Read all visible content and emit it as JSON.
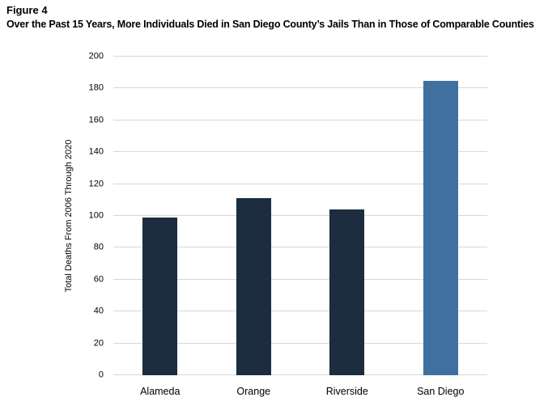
{
  "figure": {
    "label": "Figure 4",
    "title": "Over the Past 15 Years, More Individuals Died in San Diego County’s Jails Than in Those of Comparable Counties"
  },
  "chart_data": {
    "type": "bar",
    "categories": [
      "Alameda",
      "Orange",
      "Riverside",
      "San Diego"
    ],
    "values": [
      99,
      111,
      104,
      185
    ],
    "title": "",
    "xlabel": "",
    "ylabel": "Total Deaths From 2006 Through 2020",
    "ylim": [
      0,
      200
    ],
    "ytick_step": 20,
    "ytick_labels": [
      "0",
      "20",
      "40",
      "60",
      "80",
      "100",
      "120",
      "140",
      "160",
      "180",
      "200"
    ],
    "grid": "horizontal",
    "legend_position": "none",
    "bar_colors": [
      "#1b2d3f",
      "#1b2d3f",
      "#1b2d3f",
      "#40709f"
    ]
  },
  "colors": {
    "bar_default": "#1b2d3f",
    "bar_highlight": "#40709f",
    "gridline": "#d7d7d7",
    "text": "#000000",
    "background": "#ffffff"
  }
}
